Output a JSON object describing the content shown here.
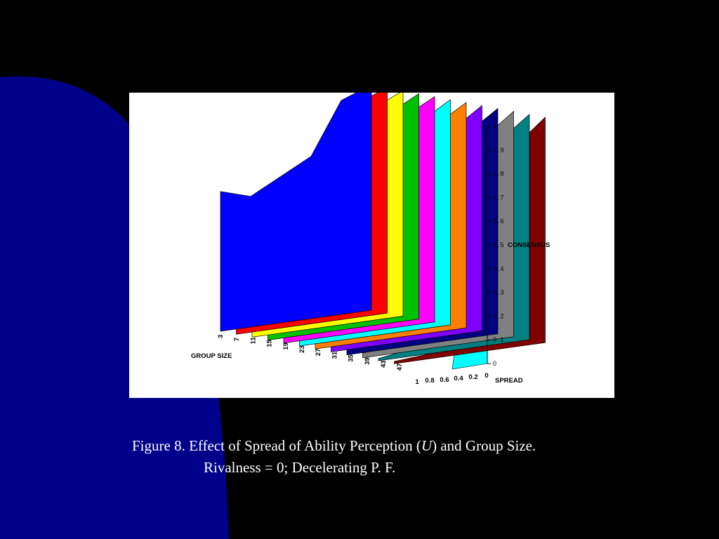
{
  "slide": {
    "background_color": "#000000",
    "shape_color": "#00008b",
    "caption_line1_prefix": "Figure 8.  Effect of Spread of Ability Perception (",
    "caption_italic": "U",
    "caption_line1_suffix": ") and Group Size.",
    "caption_line2": "Rivalness = 0; Decelerating P. F."
  },
  "chart_data": {
    "type": "area",
    "view": "3d-ribbon",
    "zlabel": "CONSENSUS",
    "ylabel": "GROUP SIZE",
    "xlabel": "SPREAD",
    "zlim": [
      0,
      1
    ],
    "z_ticks": [
      "0",
      "0.1",
      "0.2",
      "0.3",
      "0.4",
      "0.5",
      "0.6",
      "0.7",
      "0.8",
      "0.9",
      "1"
    ],
    "group_size_ticks": [
      "3",
      "7",
      "11",
      "15",
      "19",
      "23",
      "27",
      "31",
      "35",
      "39",
      "43",
      "47"
    ],
    "spread_ticks": [
      "1",
      "0.8",
      "0.6",
      "0.4",
      "0.2",
      "0"
    ],
    "series": [
      {
        "group_size": 3,
        "spread": [
          1,
          0.8,
          0.6,
          0.4,
          0.2,
          0
        ],
        "consensus": [
          0.62,
          0.58,
          0.65,
          0.72,
          0.95,
          1.0
        ]
      },
      {
        "group_size": 7,
        "spread": [
          1,
          0.8,
          0.6,
          0.4,
          0.2,
          0
        ],
        "consensus": [
          0.42,
          0.45,
          0.55,
          0.7,
          0.95,
          1.0
        ]
      },
      {
        "group_size": 11,
        "spread": [
          1,
          0.8,
          0.6,
          0.4,
          0.2,
          0
        ],
        "consensus": [
          0.3,
          0.38,
          0.5,
          0.68,
          0.94,
          1.0
        ]
      },
      {
        "group_size": 15,
        "spread": [
          1,
          0.8,
          0.6,
          0.4,
          0.2,
          0
        ],
        "consensus": [
          0.22,
          0.3,
          0.45,
          0.66,
          0.93,
          1.0
        ]
      },
      {
        "group_size": 19,
        "spread": [
          1,
          0.8,
          0.6,
          0.4,
          0.2,
          0
        ],
        "consensus": [
          0.15,
          0.22,
          0.4,
          0.64,
          0.93,
          1.0
        ]
      },
      {
        "group_size": 23,
        "spread": [
          1,
          0.8,
          0.6,
          0.4,
          0.2,
          0
        ],
        "consensus": [
          0.1,
          0.16,
          0.35,
          0.62,
          0.92,
          1.0
        ]
      },
      {
        "group_size": 27,
        "spread": [
          1,
          0.8,
          0.6,
          0.4,
          0.2,
          0
        ],
        "consensus": [
          0.07,
          0.12,
          0.3,
          0.6,
          0.92,
          1.0
        ]
      },
      {
        "group_size": 31,
        "spread": [
          1,
          0.8,
          0.6,
          0.4,
          0.2,
          0
        ],
        "consensus": [
          0.05,
          0.09,
          0.25,
          0.58,
          0.91,
          1.0
        ]
      },
      {
        "group_size": 35,
        "spread": [
          1,
          0.8,
          0.6,
          0.4,
          0.2,
          0
        ],
        "consensus": [
          0.03,
          0.06,
          0.2,
          0.56,
          0.91,
          1.0
        ]
      },
      {
        "group_size": 39,
        "spread": [
          1,
          0.8,
          0.6,
          0.4,
          0.2,
          0
        ],
        "consensus": [
          0.02,
          0.04,
          0.16,
          0.54,
          0.9,
          1.0
        ]
      },
      {
        "group_size": 43,
        "spread": [
          1,
          0.8,
          0.6,
          0.4,
          0.2,
          0
        ],
        "consensus": [
          0.01,
          0.03,
          0.12,
          0.52,
          0.9,
          1.0
        ]
      },
      {
        "group_size": 47,
        "spread": [
          1,
          0.8,
          0.6,
          0.4,
          0.2,
          0
        ],
        "consensus": [
          0.01,
          0.02,
          0.1,
          0.5,
          0.89,
          1.0
        ]
      }
    ],
    "series_colors": [
      "#0000ff",
      "#ff0000",
      "#ffff00",
      "#00c000",
      "#ff00ff",
      "#00ffff",
      "#ff8000",
      "#8000ff",
      "#000080",
      "#808080",
      "#008080",
      "#800000"
    ],
    "wall_color": "#00ffff",
    "grid": false
  }
}
